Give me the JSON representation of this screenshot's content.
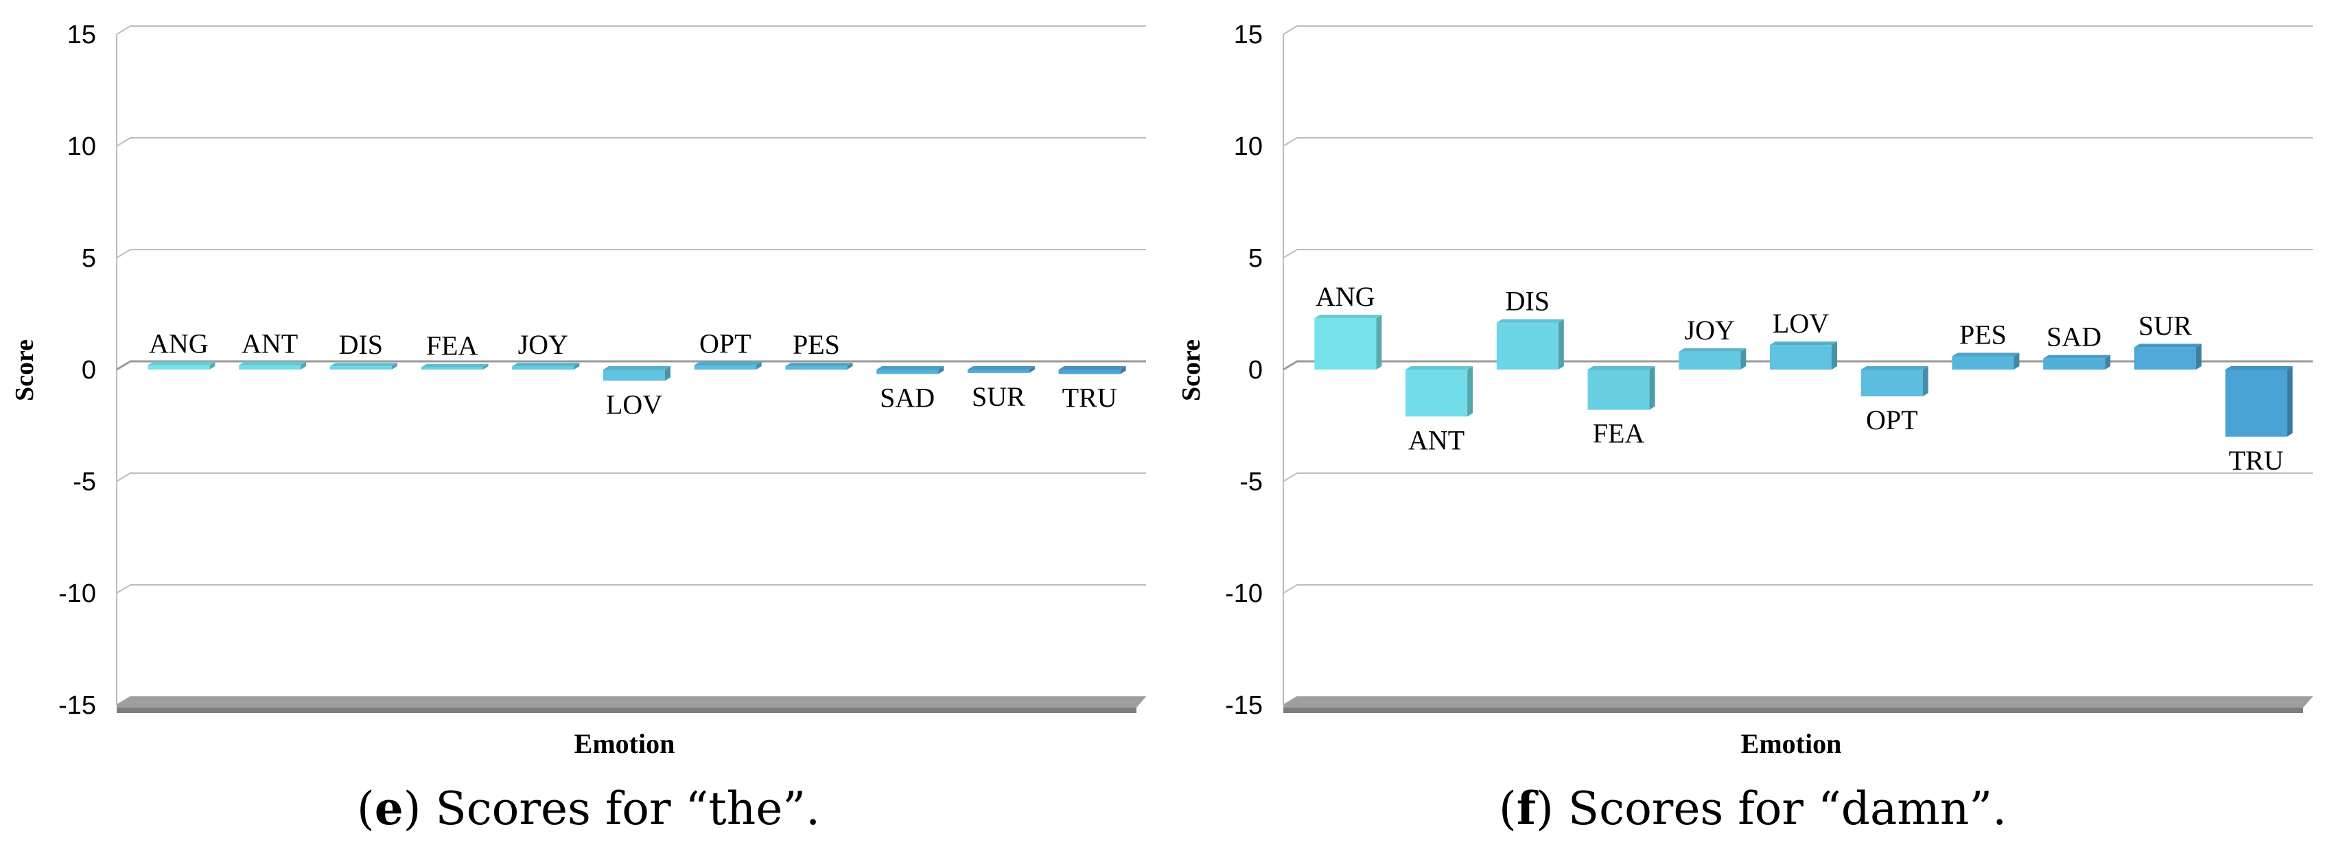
{
  "chart_data": [
    {
      "type": "bar",
      "panel": "e",
      "title": "Scores for “the”.",
      "xlabel": "Emotion",
      "ylabel": "Score",
      "ylim": [
        -15,
        15
      ],
      "yticks": [
        15,
        10,
        5,
        0,
        -5,
        -10,
        -15
      ],
      "grid": true,
      "categories": [
        "ANG",
        "ANT",
        "DIS",
        "FEA",
        "JOY",
        "LOV",
        "OPT",
        "PES",
        "SAD",
        "SUR",
        "TRU"
      ],
      "values": [
        0.2,
        0.2,
        0.15,
        0.1,
        0.15,
        -0.5,
        0.2,
        0.15,
        -0.2,
        -0.15,
        -0.2
      ]
    },
    {
      "type": "bar",
      "panel": "f",
      "title": "Scores for “damn”.",
      "xlabel": "Emotion",
      "ylabel": "Score",
      "ylim": [
        -15,
        15
      ],
      "yticks": [
        15,
        10,
        5,
        0,
        -5,
        -10,
        -15
      ],
      "grid": true,
      "categories": [
        "ANG",
        "ANT",
        "DIS",
        "FEA",
        "JOY",
        "LOV",
        "OPT",
        "PES",
        "SAD",
        "SUR",
        "TRU"
      ],
      "values": [
        2.3,
        -2.1,
        2.1,
        -1.8,
        0.8,
        1.1,
        -1.2,
        0.6,
        0.5,
        1.0,
        -3.0
      ]
    }
  ],
  "captions": [
    {
      "letter": "e",
      "text": " Scores for “the”."
    },
    {
      "letter": "f",
      "text": " Scores for “damn”."
    }
  ],
  "colors": {
    "bar_start": "#76e3ea",
    "bar_end": "#4aa3d6",
    "grid": "#bdbdbd",
    "floor": "#9e9e9e",
    "axis_text": "#000000"
  }
}
